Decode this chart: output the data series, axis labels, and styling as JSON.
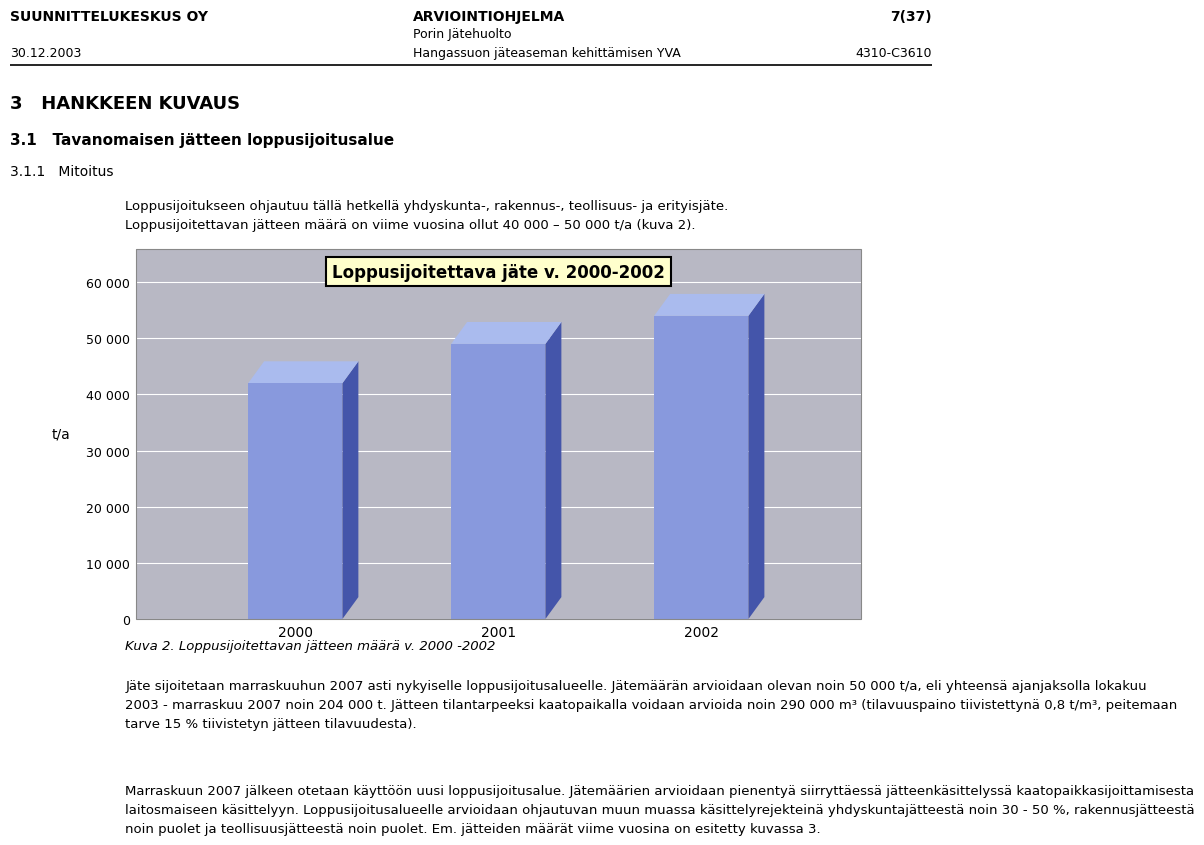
{
  "title": "Loppusijoitettava jäte v. 2000-2002",
  "categories": [
    "2000",
    "2001",
    "2002"
  ],
  "values": [
    42000,
    49000,
    54000
  ],
  "bar_face_color": "#8899dd",
  "bar_top_color": "#aabbee",
  "bar_side_color": "#4455aa",
  "ylabel": "t/a",
  "ylim": [
    0,
    60000
  ],
  "yticks": [
    0,
    10000,
    20000,
    30000,
    40000,
    50000,
    60000
  ],
  "ytick_labels": [
    "0",
    "10 000",
    "20 000",
    "30 000",
    "40 000",
    "50 000",
    "60 000"
  ],
  "chart_bg_color": "#b8b8c4",
  "title_bg_color": "#ffffcc",
  "title_border_color": "#000000",
  "header_left": "SUUNNITTELUKESKUS OY",
  "header_center": "ARVIOINTIOHJELMA",
  "header_right": "7(37)",
  "header_sub_center": "Porin Jätehuolto",
  "header_sub_right": "4310-C3610",
  "header_date": "30.12.2003",
  "header_sub_center2": "Hangassuon jäteaseman kehittämisen YVA",
  "section_title": "3   HANKKEEN KUVAUS",
  "section_sub": "3.1   Tavanomaisen jätteen loppusijoitusalue",
  "section_sub2": "3.1.1   Mitoitus",
  "body_text1_line1": "Loppusijoitukseen ohjautuu tällä hetkellä yhdyskunta-, rakennus-, teollisuus- ja erityisjäte.",
  "body_text1_line2": "Loppusijoitettavan jätteen määrä on viime vuosina ollut 40 000 – 50 000 t/a (kuva 2).",
  "caption": "Kuva 2. Loppusijoitettavan jätteen määrä v. 2000 -2002",
  "body_text2_line1": "Jäte sijoitetaan marraskuuhun 2007 asti nykyiselle loppusijoitusalueelle. Jätemäärän arvioidaan olevan noin 50 000 t/a, eli yhteensä ajanjaksolla lokakuu",
  "body_text2_line2": "2003 - marraskuu 2007 noin 204 000 t. Jätteen tilantarpeeksi kaatopaikalla voidaan arvioida noin 290 000 m³ (tilavuuspaino tiivistettynä 0,8 t/m³, peitemaan",
  "body_text2_line3": "tarve 15 % tiivistetyn jätteen tilavuudesta).",
  "body_text3_line1": "Marraskuun 2007 jälkeen otetaan käyttöön uusi loppusijoitusalue. Jätemäärien arvioidaan pienentyä siirryttäessä jätteenkäsittelyssä kaatopaikkasijoittamisesta",
  "body_text3_line2": "laitosmaiseen käsittelyyn. Loppusijoitusalueelle arvioidaan ohjautuvan muun muassa käsittelyrejekteinä yhdyskuntajätteestä noin 30 - 50 %, rakennusjätteestä",
  "body_text3_line3": "noin puolet ja teollisuusjätteestä noin puolet. Em. jätteiden määrät viime vuosina on esitetty kuvassa 3."
}
